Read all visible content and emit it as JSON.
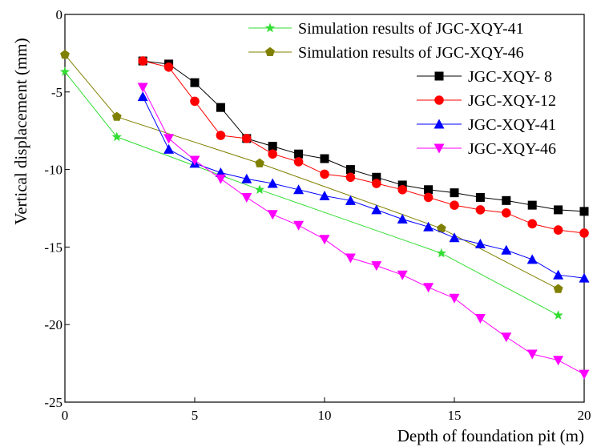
{
  "chart_data": {
    "type": "line",
    "title": "",
    "xlabel": "Depth of foundation pit (m)",
    "ylabel": "Vertical displacement (mm)",
    "xlim": [
      0,
      20
    ],
    "ylim": [
      -25,
      0
    ],
    "x_ticks": [
      0,
      5,
      10,
      15,
      20
    ],
    "y_ticks": [
      0,
      -5,
      -10,
      -15,
      -20,
      -25
    ],
    "x_tick_labels": [
      "0",
      "5",
      "10",
      "15",
      "20"
    ],
    "y_tick_labels": [
      "0",
      "-5",
      "-10",
      "-15",
      "-20",
      "-25"
    ],
    "grid": false,
    "legend_position": "top-right",
    "series": [
      {
        "name": "Simulation results of JGC-XQY-41",
        "color": "#33dd33",
        "marker": "star",
        "points": [
          [
            0,
            -3.7
          ],
          [
            2,
            -7.9
          ],
          [
            7.5,
            -11.3
          ],
          [
            14.5,
            -15.4
          ],
          [
            19,
            -19.4
          ]
        ]
      },
      {
        "name": "Simulation results of JGC-XQY-46",
        "color": "#808000",
        "marker": "pentagon",
        "points": [
          [
            0,
            -2.6
          ],
          [
            2,
            -6.6
          ],
          [
            7.5,
            -9.6
          ],
          [
            14.5,
            -13.8
          ],
          [
            19,
            -17.7
          ]
        ]
      },
      {
        "name": "JGC-XQY-  8",
        "color": "#000000",
        "marker": "square",
        "points": [
          [
            3,
            -3.0
          ],
          [
            4,
            -3.2
          ],
          [
            5,
            -4.4
          ],
          [
            6,
            -6.0
          ],
          [
            7,
            -8.0
          ],
          [
            8,
            -8.5
          ],
          [
            9,
            -9.0
          ],
          [
            10,
            -9.3
          ],
          [
            11,
            -10.0
          ],
          [
            12,
            -10.5
          ],
          [
            13,
            -11.0
          ],
          [
            14,
            -11.3
          ],
          [
            15,
            -11.5
          ],
          [
            16,
            -11.8
          ],
          [
            17,
            -12.0
          ],
          [
            18,
            -12.3
          ],
          [
            19,
            -12.6
          ],
          [
            20,
            -12.7
          ]
        ]
      },
      {
        "name": "JGC-XQY-12",
        "color": "#ff0000",
        "marker": "circle",
        "points": [
          [
            3,
            -3.0
          ],
          [
            4,
            -3.4
          ],
          [
            5,
            -5.6
          ],
          [
            6,
            -7.8
          ],
          [
            7,
            -8.0
          ],
          [
            8,
            -9.0
          ],
          [
            9,
            -9.5
          ],
          [
            10,
            -10.3
          ],
          [
            11,
            -10.5
          ],
          [
            12,
            -10.9
          ],
          [
            13,
            -11.3
          ],
          [
            14,
            -11.8
          ],
          [
            15,
            -12.3
          ],
          [
            16,
            -12.6
          ],
          [
            17,
            -12.8
          ],
          [
            18,
            -13.5
          ],
          [
            19,
            -13.9
          ],
          [
            20,
            -14.1
          ]
        ]
      },
      {
        "name": "JGC-XQY-41",
        "color": "#0000ff",
        "marker": "triangle-up",
        "points": [
          [
            3,
            -5.3
          ],
          [
            4,
            -8.7
          ],
          [
            5,
            -9.6
          ],
          [
            6,
            -10.2
          ],
          [
            7,
            -10.6
          ],
          [
            8,
            -10.9
          ],
          [
            9,
            -11.3
          ],
          [
            10,
            -11.7
          ],
          [
            11,
            -12.0
          ],
          [
            12,
            -12.6
          ],
          [
            13,
            -13.2
          ],
          [
            14,
            -13.7
          ],
          [
            15,
            -14.4
          ],
          [
            16,
            -14.8
          ],
          [
            17,
            -15.2
          ],
          [
            18,
            -15.8
          ],
          [
            19,
            -16.8
          ],
          [
            20,
            -17.0
          ]
        ]
      },
      {
        "name": "JGC-XQY-46",
        "color": "#ff00ff",
        "marker": "triangle-down",
        "points": [
          [
            3,
            -4.7
          ],
          [
            4,
            -8.0
          ],
          [
            5,
            -9.4
          ],
          [
            6,
            -10.6
          ],
          [
            7,
            -11.8
          ],
          [
            8,
            -12.9
          ],
          [
            9,
            -13.6
          ],
          [
            10,
            -14.5
          ],
          [
            11,
            -15.7
          ],
          [
            12,
            -16.2
          ],
          [
            13,
            -16.8
          ],
          [
            14,
            -17.6
          ],
          [
            15,
            -18.3
          ],
          [
            16,
            -19.6
          ],
          [
            17,
            -20.8
          ],
          [
            18,
            -21.9
          ],
          [
            19,
            -22.3
          ],
          [
            20,
            -23.2
          ]
        ]
      }
    ]
  }
}
